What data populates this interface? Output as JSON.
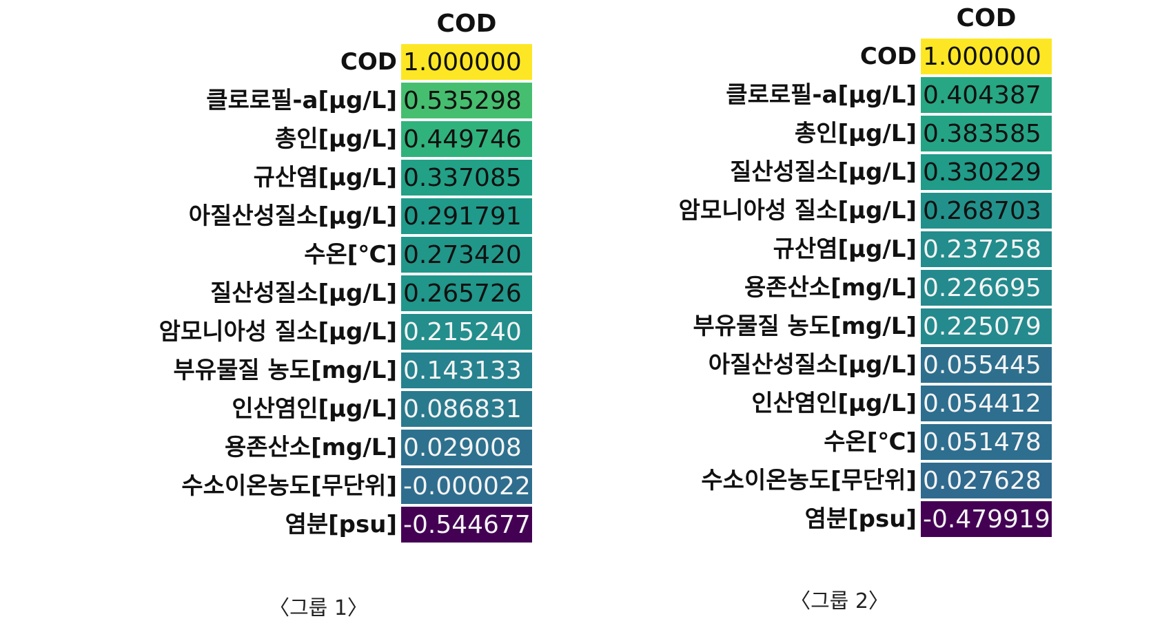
{
  "chart_data": [
    {
      "type": "heatmap",
      "column_header": "COD",
      "caption": "〈그룹 1〉",
      "rows": [
        {
          "label": "COD",
          "value": "1.000000"
        },
        {
          "label": "클로로필-a[μg/L]",
          "value": "0.535298"
        },
        {
          "label": "총인[μg/L]",
          "value": "0.449746"
        },
        {
          "label": "규산염[μg/L]",
          "value": "0.337085"
        },
        {
          "label": "아질산성질소[μg/L]",
          "value": "0.291791"
        },
        {
          "label": "수온[℃]",
          "value": "0.273420"
        },
        {
          "label": "질산성질소[μg/L]",
          "value": "0.265726"
        },
        {
          "label": "암모니아성 질소[μg/L]",
          "value": "0.215240"
        },
        {
          "label": "부유물질 농도[mg/L]",
          "value": "0.143133"
        },
        {
          "label": "인산염인[μg/L]",
          "value": "0.086831"
        },
        {
          "label": "용존산소[mg/L]",
          "value": "0.029008"
        },
        {
          "label": "수소이온농도[무단위]",
          "value": "-0.000022"
        },
        {
          "label": "염분[psu]",
          "value": "-0.544677"
        }
      ]
    },
    {
      "type": "heatmap",
      "column_header": "COD",
      "caption": "〈그룹 2〉",
      "rows": [
        {
          "label": "COD",
          "value": "1.000000"
        },
        {
          "label": "클로로필-a[μg/L]",
          "value": "0.404387"
        },
        {
          "label": "총인[μg/L]",
          "value": "0.383585"
        },
        {
          "label": "질산성질소[μg/L]",
          "value": "0.330229"
        },
        {
          "label": "암모니아성 질소[μg/L]",
          "value": "0.268703"
        },
        {
          "label": "규산염[μg/L]",
          "value": "0.237258"
        },
        {
          "label": "용존산소[mg/L]",
          "value": "0.226695"
        },
        {
          "label": "부유물질 농도[mg/L]",
          "value": "0.225079"
        },
        {
          "label": "아질산성질소[μg/L]",
          "value": "0.055445"
        },
        {
          "label": "인산염인[μg/L]",
          "value": "0.054412"
        },
        {
          "label": "수온[℃]",
          "value": "0.051478"
        },
        {
          "label": "수소이온농도[무단위]",
          "value": "0.027628"
        },
        {
          "label": "염분[psu]",
          "value": "-0.479919"
        }
      ]
    }
  ]
}
